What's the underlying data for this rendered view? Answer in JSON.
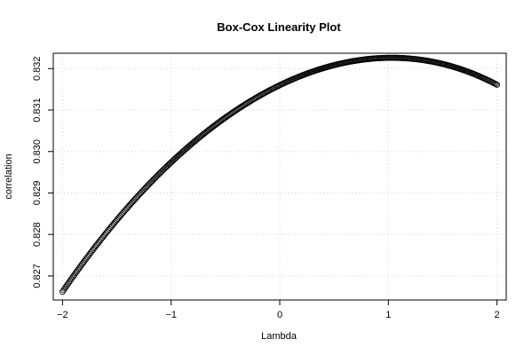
{
  "chart_data": {
    "type": "scatter",
    "title": "Box-Cox Linearity Plot",
    "xlabel": "Lambda",
    "ylabel": "correlation",
    "xlim": [
      -2.085,
      2.085
    ],
    "ylim": [
      0.82642,
      0.83237
    ],
    "xticks": [
      -2,
      -1,
      0,
      1,
      2
    ],
    "yticks": [
      0.827,
      0.828,
      0.829,
      0.83,
      0.831,
      0.832
    ],
    "xtick_labels": [
      "−2",
      "−1",
      "0",
      "1",
      "2"
    ],
    "ytick_labels": [
      "0.827",
      "0.828",
      "0.829",
      "0.830",
      "0.831",
      "0.832"
    ],
    "grid": true,
    "marker": "open-circle",
    "x_range": [
      -2,
      2
    ],
    "n_points": 401,
    "curve_anchor_points": {
      "x": [
        -2,
        -1,
        0,
        1,
        2
      ],
      "y": [
        0.82662,
        0.82974,
        0.8316,
        0.83226,
        0.83161
      ]
    }
  }
}
